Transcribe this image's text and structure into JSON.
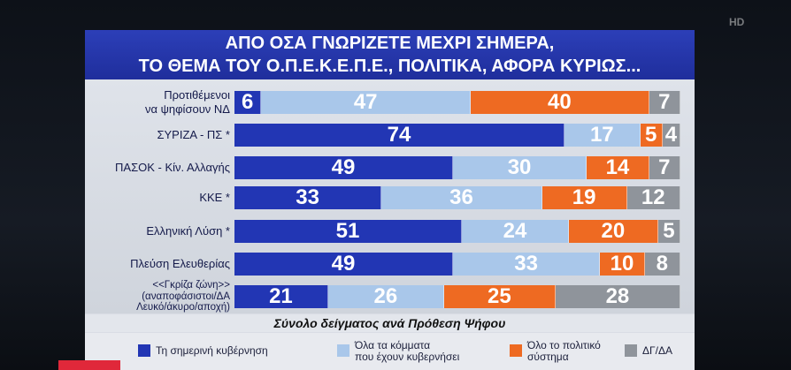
{
  "title_lines": [
    "ΑΠΟ ΟΣΑ ΓΝΩΡΙΖΕΤΕ ΜΕΧΡΙ ΣΗΜΕΡΑ,",
    "ΤΟ ΘΕΜΑ ΤΟΥ Ο.Π.Ε.Κ.Ε.Π.Ε., ΠΟΛΙΤΙΚΑ, ΑΦΟΡΑ ΚΥΡΙΩΣ..."
  ],
  "subtitle": "Σύνολο δείγματος ανά Πρόθεση Ψήφου",
  "logo_text": "HD",
  "colors": {
    "government": "#2236b4",
    "all_parties": "#a9c7ea",
    "system": "#ee6a22",
    "dk": "#8f949b"
  },
  "chart_data": {
    "type": "bar",
    "orientation": "horizontal-stacked-100",
    "title": "ΑΠΟ ΟΣΑ ΓΝΩΡΙΖΕΤΕ ΜΕΧΡΙ ΣΗΜΕΡΑ, ΤΟ ΘΕΜΑ ΤΟΥ Ο.Π.Ε.Κ.Ε.Π.Ε., ΠΟΛΙΤΙΚΑ, ΑΦΟΡΑ ΚΥΡΙΩΣ...",
    "categories": [
      [
        "Προτιθέμενοι",
        "να ψηφίσουν ΝΔ"
      ],
      [
        "ΣΥΡΙΖΑ - ΠΣ *"
      ],
      [
        "ΠΑΣΟΚ - Κίν. Αλλαγής"
      ],
      [
        "ΚΚΕ *"
      ],
      [
        "Ελληνική Λύση *"
      ],
      [
        "Πλεύση Ελευθερίας"
      ],
      [
        "<<Γκρίζα ζώνη>>",
        "(αναποφάσιστοι/ΔΑ",
        "Λευκό/άκυρο/αποχή)"
      ]
    ],
    "series": [
      {
        "name": "Τη σημερινή κυβέρνηση",
        "name_lines": [
          "Τη σημερινή κυβέρνηση"
        ],
        "color_key": "government",
        "values": [
          6,
          74,
          49,
          33,
          51,
          49,
          21
        ]
      },
      {
        "name": "Όλα τα κόμματα που έχουν κυβερνήσει",
        "name_lines": [
          "Όλα τα κόμματα",
          "που έχουν κυβερνήσει"
        ],
        "color_key": "all_parties",
        "values": [
          47,
          17,
          30,
          36,
          24,
          33,
          26
        ]
      },
      {
        "name": "Όλο το πολιτικό σύστημα",
        "name_lines": [
          "Όλο το πολιτικό",
          "σύστημα"
        ],
        "color_key": "system",
        "values": [
          40,
          5,
          14,
          19,
          20,
          10,
          25
        ]
      },
      {
        "name": "ΔΓ/ΔΑ",
        "name_lines": [
          "ΔΓ/ΔΑ"
        ],
        "color_key": "dk",
        "values": [
          7,
          4,
          7,
          12,
          5,
          8,
          28
        ]
      }
    ],
    "xlim": [
      0,
      100
    ],
    "legend": "bottom"
  }
}
